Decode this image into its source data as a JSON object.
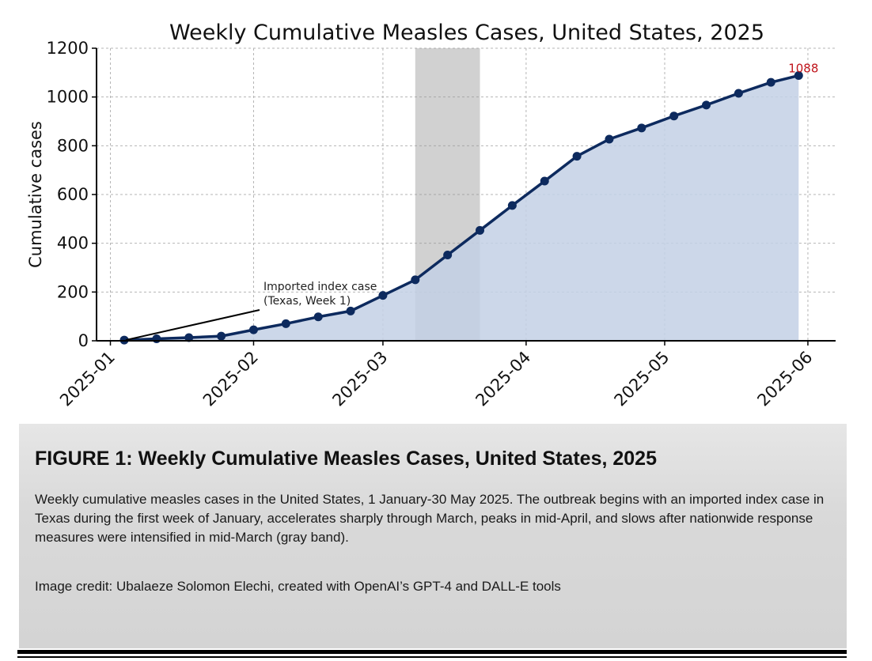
{
  "chart_data": {
    "type": "area",
    "title": "Weekly Cumulative Measles Cases, United States, 2025",
    "xlabel": "",
    "ylabel": "Cumulative cases",
    "xlim": [
      "2024-12-29",
      "2025-06-07"
    ],
    "ylim": [
      0,
      1200
    ],
    "grid": true,
    "x_ticks": [
      "2025-01",
      "2025-02",
      "2025-03",
      "2025-04",
      "2025-05",
      "2025-06"
    ],
    "y_ticks": [
      0,
      200,
      400,
      600,
      800,
      1000,
      1200
    ],
    "series": [
      {
        "x": [
          "2025-01-04",
          "2025-01-11",
          "2025-01-18",
          "2025-01-25",
          "2025-02-01",
          "2025-02-08",
          "2025-02-15",
          "2025-02-22",
          "2025-03-01",
          "2025-03-08",
          "2025-03-15",
          "2025-03-22",
          "2025-03-29",
          "2025-04-05",
          "2025-04-12",
          "2025-04-19",
          "2025-04-26",
          "2025-05-03",
          "2025-05-10",
          "2025-05-17",
          "2025-05-24",
          "2025-05-30"
        ],
        "values": [
          3,
          8,
          13,
          19,
          45,
          70,
          98,
          122,
          186,
          250,
          352,
          453,
          555,
          655,
          757,
          827,
          873,
          922,
          967,
          1015,
          1060,
          1088
        ],
        "color": "#0d2a5e",
        "fill": "#c3d0e5"
      }
    ],
    "shaded_band": {
      "start": "2025-03-08",
      "end": "2025-03-22",
      "color": "#9a9a9a"
    },
    "annotations": [
      {
        "text_line1": "Imported index case",
        "text_line2": "(Texas, Week 1)",
        "points_to_x": "2025-01-04",
        "points_to_y": 3
      },
      {
        "text": "1088",
        "x": "2025-05-30",
        "y": 1088,
        "color": "#c0141b"
      }
    ]
  },
  "caption": {
    "title": "FIGURE 1: Weekly Cumulative Measles Cases, United States, 2025",
    "body": "Weekly cumulative measles cases in the United States, 1 January-30 May 2025. The outbreak begins with an imported index case in Texas during the first week of January, accelerates sharply through March, peaks in mid-April, and slows after nationwide response measures were intensified in mid-March (gray band).",
    "credit": "Image credit: Ubalaeze Solomon Elechi, created with OpenAI’s GPT-4 and DALL-E tools"
  }
}
